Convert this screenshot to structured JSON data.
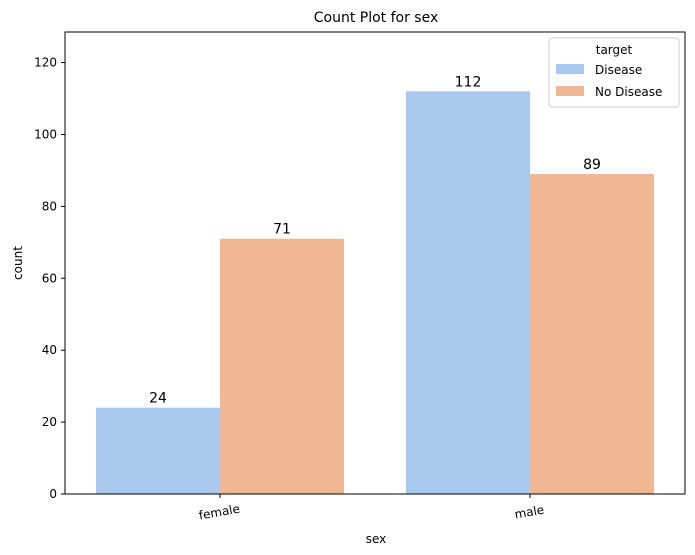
{
  "chart_data": {
    "type": "bar",
    "title": "Count Plot for sex",
    "xlabel": "sex",
    "ylabel": "count",
    "categories": [
      "female",
      "male"
    ],
    "series": [
      {
        "name": "Disease",
        "values": [
          24,
          112
        ],
        "color": "#aac9ee"
      },
      {
        "name": "No Disease",
        "values": [
          71,
          89
        ],
        "color": "#f0b892"
      }
    ],
    "ylim": [
      0,
      128.5
    ],
    "yticks": [
      0,
      20,
      40,
      60,
      80,
      100,
      120
    ],
    "legend": {
      "title": "target",
      "position": "top-right"
    },
    "grid": false
  }
}
